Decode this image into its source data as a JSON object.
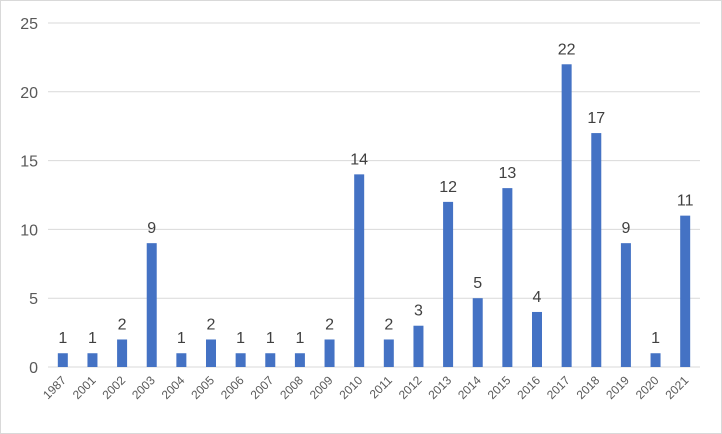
{
  "chart_data": {
    "type": "bar",
    "categories": [
      "1987",
      "2001",
      "2002",
      "2003",
      "2004",
      "2005",
      "2006",
      "2007",
      "2008",
      "2009",
      "2010",
      "2011",
      "2012",
      "2013",
      "2014",
      "2015",
      "2016",
      "2017",
      "2018",
      "2019",
      "2020",
      "2021"
    ],
    "values": [
      1,
      1,
      2,
      9,
      1,
      2,
      1,
      1,
      1,
      2,
      14,
      2,
      3,
      12,
      5,
      13,
      4,
      22,
      17,
      9,
      1,
      11
    ],
    "title": "",
    "xlabel": "",
    "ylabel": "",
    "ylim": [
      0,
      25
    ],
    "yticks": [
      0,
      5,
      10,
      15,
      20,
      25
    ],
    "grid": true,
    "legend": "none",
    "data_labels": true,
    "bar_color": "#4472C4"
  }
}
